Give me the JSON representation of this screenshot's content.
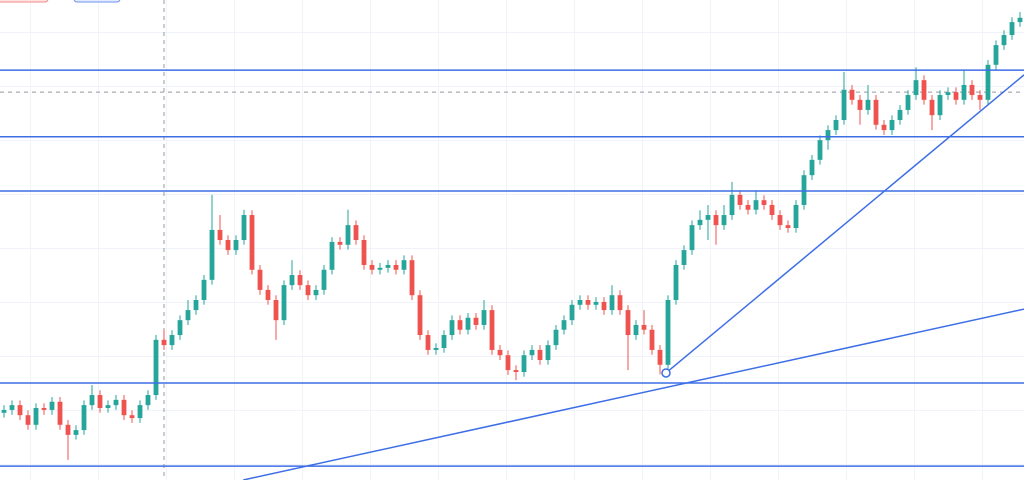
{
  "chart_data": {
    "type": "candlestick",
    "ylim": [
      0,
      100
    ],
    "grid": true,
    "up_color": "#26a69a",
    "down_color": "#ef5350",
    "drawing_color": "#3d6ee6",
    "ohlc": [
      [
        14.0,
        15.6,
        13.0,
        14.6
      ],
      [
        14.6,
        16.6,
        13.6,
        15.6
      ],
      [
        15.6,
        16.6,
        12.5,
        13.5
      ],
      [
        13.5,
        14.5,
        10.5,
        11.5
      ],
      [
        11.5,
        16.0,
        10.5,
        15.0
      ],
      [
        15.0,
        16.0,
        13.6,
        14.6
      ],
      [
        14.6,
        17.3,
        13.6,
        16.3
      ],
      [
        16.3,
        17.3,
        10.5,
        11.5
      ],
      [
        11.5,
        12.5,
        4.2,
        9.4
      ],
      [
        9.4,
        11.4,
        8.4,
        10.4
      ],
      [
        10.4,
        16.6,
        9.4,
        15.6
      ],
      [
        15.6,
        19.8,
        14.6,
        17.7
      ],
      [
        17.7,
        18.7,
        14.0,
        15.0
      ],
      [
        15.0,
        16.6,
        14.0,
        15.6
      ],
      [
        15.6,
        17.7,
        14.6,
        16.7
      ],
      [
        16.7,
        17.7,
        12.5,
        13.5
      ],
      [
        13.5,
        14.5,
        11.9,
        12.9
      ],
      [
        12.9,
        16.6,
        11.9,
        15.6
      ],
      [
        15.6,
        18.7,
        14.6,
        17.7
      ],
      [
        17.7,
        30.2,
        16.7,
        29.2
      ],
      [
        29.2,
        31.3,
        27.1,
        28.1
      ],
      [
        28.1,
        31.2,
        27.1,
        30.2
      ],
      [
        30.2,
        34.3,
        29.2,
        33.3
      ],
      [
        33.3,
        37.5,
        32.3,
        35.4
      ],
      [
        35.4,
        38.5,
        34.4,
        37.5
      ],
      [
        37.5,
        42.7,
        36.5,
        41.7
      ],
      [
        41.7,
        59.4,
        40.7,
        52.1
      ],
      [
        52.1,
        55.2,
        49.0,
        50.0
      ],
      [
        50.0,
        51.0,
        46.9,
        47.9
      ],
      [
        47.9,
        51.0,
        46.9,
        50.0
      ],
      [
        50.0,
        56.3,
        49.0,
        55.2
      ],
      [
        55.2,
        56.2,
        42.8,
        43.8
      ],
      [
        43.8,
        44.8,
        38.6,
        39.6
      ],
      [
        39.6,
        40.6,
        36.5,
        37.5
      ],
      [
        37.5,
        38.5,
        29.2,
        33.3
      ],
      [
        33.3,
        41.6,
        32.3,
        40.6
      ],
      [
        40.6,
        45.8,
        39.6,
        42.7
      ],
      [
        42.7,
        43.7,
        39.6,
        40.6
      ],
      [
        40.6,
        41.6,
        37.5,
        38.5
      ],
      [
        38.5,
        40.6,
        37.5,
        39.6
      ],
      [
        39.6,
        44.8,
        38.6,
        43.8
      ],
      [
        43.8,
        50.6,
        42.8,
        49.6
      ],
      [
        49.6,
        50.6,
        48.0,
        49.0
      ],
      [
        49.0,
        56.3,
        48.0,
        53.1
      ],
      [
        53.1,
        54.1,
        49.0,
        50.0
      ],
      [
        50.0,
        51.0,
        43.8,
        44.8
      ],
      [
        44.8,
        45.8,
        42.8,
        43.8
      ],
      [
        43.8,
        45.2,
        42.8,
        44.2
      ],
      [
        44.2,
        45.8,
        43.2,
        44.8
      ],
      [
        44.8,
        45.8,
        42.8,
        43.8
      ],
      [
        43.8,
        46.8,
        42.8,
        45.8
      ],
      [
        45.8,
        46.8,
        37.5,
        38.5
      ],
      [
        38.5,
        39.5,
        29.2,
        30.2
      ],
      [
        30.2,
        31.2,
        26.1,
        27.1
      ],
      [
        27.1,
        28.5,
        26.1,
        27.5
      ],
      [
        27.5,
        31.2,
        26.5,
        30.2
      ],
      [
        30.2,
        34.3,
        29.2,
        33.3
      ],
      [
        33.3,
        34.3,
        30.3,
        31.3
      ],
      [
        31.3,
        34.8,
        30.3,
        33.8
      ],
      [
        33.8,
        34.8,
        31.3,
        32.3
      ],
      [
        32.3,
        37.5,
        31.3,
        35.4
      ],
      [
        35.4,
        36.4,
        26.1,
        27.1
      ],
      [
        27.1,
        28.1,
        25.0,
        26.0
      ],
      [
        26.0,
        27.0,
        21.9,
        22.9
      ],
      [
        22.9,
        23.9,
        20.8,
        22.5
      ],
      [
        22.5,
        27.0,
        21.5,
        26.0
      ],
      [
        26.0,
        28.1,
        25.0,
        27.1
      ],
      [
        27.1,
        28.1,
        24.0,
        25.0
      ],
      [
        25.0,
        29.1,
        24.0,
        28.1
      ],
      [
        28.1,
        32.3,
        27.1,
        31.3
      ],
      [
        31.3,
        34.3,
        30.3,
        33.3
      ],
      [
        33.3,
        37.5,
        32.3,
        36.5
      ],
      [
        36.5,
        38.5,
        35.5,
        37.5
      ],
      [
        37.5,
        38.5,
        35.5,
        36.5
      ],
      [
        36.5,
        38.1,
        35.5,
        37.1
      ],
      [
        37.1,
        38.1,
        34.4,
        35.4
      ],
      [
        35.4,
        40.6,
        34.4,
        38.5
      ],
      [
        38.5,
        39.5,
        34.4,
        35.4
      ],
      [
        35.4,
        36.4,
        22.9,
        30.2
      ],
      [
        30.2,
        33.3,
        29.2,
        32.3
      ],
      [
        32.3,
        35.4,
        30.3,
        31.3
      ],
      [
        31.3,
        32.3,
        26.1,
        27.1
      ],
      [
        27.1,
        28.1,
        22.0,
        24.0
      ],
      [
        24.0,
        38.5,
        23.0,
        37.5
      ],
      [
        37.5,
        45.8,
        36.5,
        44.8
      ],
      [
        44.8,
        48.9,
        43.8,
        47.9
      ],
      [
        47.9,
        54.1,
        46.9,
        53.1
      ],
      [
        53.1,
        56.2,
        52.1,
        54.2
      ],
      [
        54.2,
        57.3,
        50.0,
        55.2
      ],
      [
        55.2,
        56.2,
        49.0,
        53.1
      ],
      [
        53.1,
        57.3,
        52.1,
        55.2
      ],
      [
        55.2,
        62.1,
        54.2,
        59.4
      ],
      [
        59.4,
        60.4,
        56.3,
        57.3
      ],
      [
        57.3,
        58.3,
        55.3,
        56.3
      ],
      [
        56.3,
        60.4,
        55.3,
        58.3
      ],
      [
        58.3,
        59.3,
        56.3,
        57.3
      ],
      [
        57.3,
        58.3,
        54.2,
        55.2
      ],
      [
        55.2,
        56.2,
        52.1,
        53.1
      ],
      [
        53.1,
        54.1,
        51.5,
        52.5
      ],
      [
        52.5,
        58.3,
        51.5,
        57.3
      ],
      [
        57.3,
        64.5,
        56.3,
        63.5
      ],
      [
        63.5,
        67.7,
        62.5,
        66.7
      ],
      [
        66.7,
        71.8,
        65.7,
        70.8
      ],
      [
        70.8,
        73.9,
        68.8,
        72.9
      ],
      [
        72.9,
        76.0,
        71.9,
        75.0
      ],
      [
        75.0,
        85.0,
        74.0,
        81.3
      ],
      [
        81.3,
        82.3,
        78.2,
        79.2
      ],
      [
        79.2,
        80.2,
        74.0,
        77.1
      ],
      [
        77.1,
        82.3,
        76.1,
        79.2
      ],
      [
        79.2,
        80.2,
        73.0,
        74.0
      ],
      [
        74.0,
        75.0,
        71.9,
        72.9
      ],
      [
        72.9,
        76.0,
        71.9,
        75.0
      ],
      [
        75.0,
        78.1,
        74.0,
        77.1
      ],
      [
        77.1,
        81.2,
        76.1,
        80.2
      ],
      [
        80.2,
        86.0,
        79.2,
        83.3
      ],
      [
        83.3,
        84.3,
        78.2,
        79.2
      ],
      [
        79.2,
        80.2,
        72.9,
        76.0
      ],
      [
        76.0,
        81.2,
        75.0,
        80.2
      ],
      [
        80.2,
        81.8,
        79.2,
        80.8
      ],
      [
        80.8,
        81.8,
        78.2,
        79.2
      ],
      [
        79.2,
        85.4,
        78.2,
        82.3
      ],
      [
        82.3,
        83.3,
        79.2,
        80.2
      ],
      [
        80.2,
        81.2,
        77.1,
        79.2
      ],
      [
        79.2,
        87.5,
        78.2,
        86.5
      ],
      [
        86.5,
        91.6,
        85.5,
        90.6
      ],
      [
        90.6,
        93.7,
        89.6,
        92.7
      ],
      [
        92.7,
        96.4,
        91.7,
        95.4
      ],
      [
        95.4,
        97.5,
        94.4,
        96.3
      ]
    ],
    "levels": [
      85.4,
      71.5,
      60.2,
      20.2,
      2.9
    ],
    "crosshair": {
      "index": 20,
      "price": 80.8
    },
    "trendlines": [
      {
        "x": [
          29.9,
          127.5
        ],
        "y": [
          0,
          35.6
        ]
      },
      {
        "x": [
          82.75,
          127.5
        ],
        "y": [
          22.3,
          84.4
        ]
      }
    ]
  }
}
